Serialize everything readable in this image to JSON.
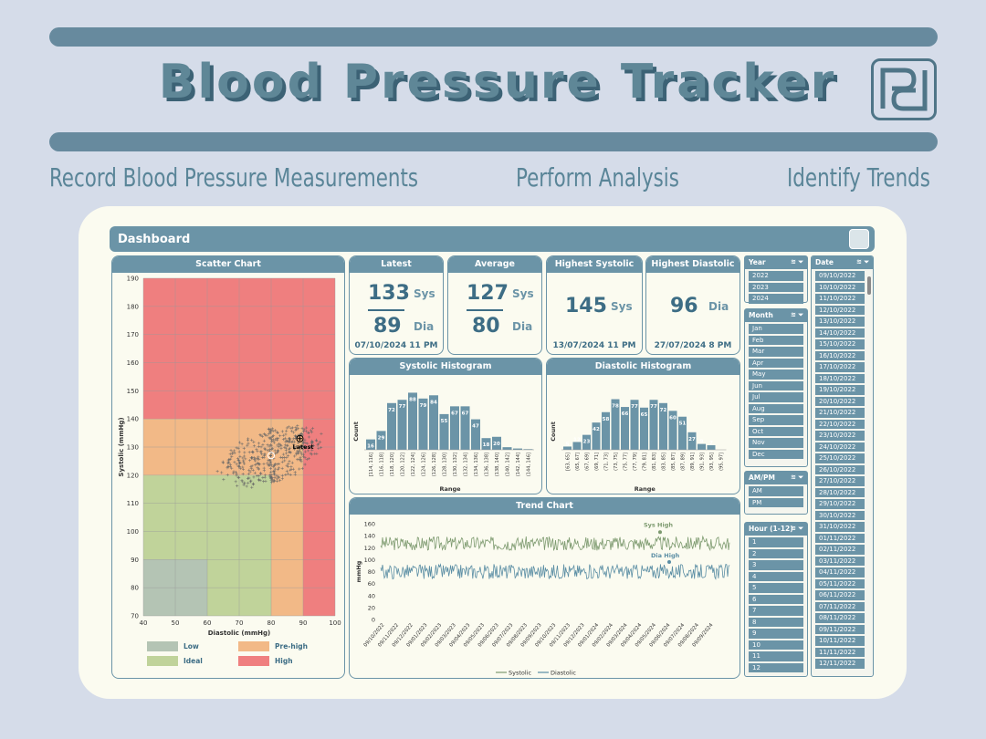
{
  "hero": {
    "title": "Blood Pressure Tracker",
    "tagline_1": "Record Blood Pressure Measurements",
    "tagline_2": "Perform Analysis",
    "tagline_3": "Identify Trends"
  },
  "dashboard": {
    "title": "Dashboard",
    "latest": {
      "label": "Latest",
      "sys": "133",
      "dia": "89",
      "sys_unit": "Sys",
      "dia_unit": "Dia",
      "date": "07/10/2024 11 PM"
    },
    "average": {
      "label": "Average",
      "sys": "127",
      "dia": "80",
      "sys_unit": "Sys",
      "dia_unit": "Dia"
    },
    "highest_systolic": {
      "label": "Highest Systolic",
      "value": "145",
      "unit": "Sys",
      "date": "13/07/2024 11 PM"
    },
    "highest_diastolic": {
      "label": "Highest Diastolic",
      "value": "96",
      "unit": "Dia",
      "date": "27/07/2024 8 PM"
    }
  },
  "colors": {
    "low": "#b4c4b4",
    "ideal": "#c0d39a",
    "prehigh": "#f2b987",
    "high": "#ef7f7f",
    "accent": "#6b94a7",
    "systolic": "#7d9a6f",
    "diastolic": "#5b8ea4"
  },
  "chart_data": [
    {
      "type": "scatter",
      "title": "Scatter Chart",
      "xlabel": "Diastolic (mmHg)",
      "ylabel": "Systolic (mmHg)",
      "xlim": [
        40,
        100
      ],
      "ylim": [
        70,
        190
      ],
      "x_ticks": [
        "40",
        "50",
        "60",
        "70",
        "80",
        "90",
        "100"
      ],
      "y_ticks": [
        "70",
        "80",
        "90",
        "100",
        "110",
        "120",
        "130",
        "140",
        "150",
        "160",
        "170",
        "180",
        "190"
      ],
      "zones": [
        {
          "name": "Low",
          "color": "#b4c4b4"
        },
        {
          "name": "Ideal",
          "color": "#c0d39a"
        },
        {
          "name": "Pre-high",
          "color": "#f2b987"
        },
        {
          "name": "High",
          "color": "#ef7f7f"
        }
      ],
      "latest_point": {
        "x": 89,
        "y": 133,
        "label": "Latest"
      },
      "average_point": {
        "x": 80,
        "y": 127
      },
      "cluster": {
        "x_range": [
          63,
          97
        ],
        "y_range": [
          118,
          144
        ]
      }
    },
    {
      "type": "bar",
      "title": "Systolic Histogram",
      "xlabel": "Range",
      "ylabel": "Count",
      "categories": [
        "[114, 116]",
        "(116, 118]",
        "(118, 120]",
        "(120, 122]",
        "(122, 124]",
        "(124, 126]",
        "(126, 128]",
        "(128, 130]",
        "(130, 132]",
        "(132, 134]",
        "(134, 136]",
        "(136, 138]",
        "(138, 140]",
        "(140, 142]",
        "(142, 144]",
        "(144, 146]"
      ],
      "values": [
        16,
        29,
        72,
        77,
        88,
        79,
        84,
        55,
        67,
        67,
        47,
        18,
        20,
        4,
        2,
        1
      ],
      "label_values": [
        "16",
        "29",
        "72",
        "77",
        "88",
        "79",
        "84",
        "55",
        "67",
        "67",
        "47",
        "18",
        "20"
      ]
    },
    {
      "type": "bar",
      "title": "Diastolic Histogram",
      "xlabel": "Range",
      "ylabel": "Count",
      "categories": [
        "[63, 65]",
        "(65, 67]",
        "(67, 69]",
        "(69, 71]",
        "(71, 73]",
        "(73, 75]",
        "(75, 77]",
        "(77, 79]",
        "(79, 81]",
        "(81, 83]",
        "(83, 85]",
        "(85, 87]",
        "(87, 89]",
        "(89, 91]",
        "(91, 93]",
        "(93, 95]",
        "(95, 97]"
      ],
      "values": [
        5,
        12,
        23,
        42,
        58,
        78,
        66,
        77,
        65,
        77,
        72,
        60,
        51,
        27,
        9,
        7,
        0
      ],
      "label_values": [
        "5",
        "12",
        "23",
        "42",
        "58",
        "78",
        "66",
        "77",
        "65",
        "77",
        "72",
        "60",
        "51",
        "27",
        "9",
        "7"
      ]
    },
    {
      "type": "line",
      "title": "Trend Chart",
      "ylabel": "mmHg",
      "ylim": [
        0,
        160
      ],
      "y_ticks": [
        "0",
        "20",
        "40",
        "60",
        "80",
        "100",
        "120",
        "140",
        "160"
      ],
      "x_ticks": [
        "09/10/2022",
        "09/11/2022",
        "09/12/2022",
        "09/01/2023",
        "09/02/2023",
        "09/03/2023",
        "09/04/2023",
        "09/05/2023",
        "09/06/2023",
        "09/07/2023",
        "09/08/2023",
        "09/09/2023",
        "09/10/2023",
        "09/11/2023",
        "09/12/2023",
        "09/01/2024",
        "09/02/2024",
        "09/03/2024",
        "09/04/2024",
        "09/05/2024",
        "09/06/2024",
        "09/07/2024",
        "09/08/2024",
        "09/09/2024"
      ],
      "series": [
        {
          "name": "Systolic",
          "mean": 127,
          "min": 114,
          "max": 145
        },
        {
          "name": "Diastolic",
          "mean": 80,
          "min": 63,
          "max": 96
        }
      ],
      "annotations": [
        "Sys High",
        "Dia High"
      ]
    }
  ],
  "slicers": {
    "year": {
      "title": "Year",
      "items": [
        "2022",
        "2023",
        "2024"
      ]
    },
    "month": {
      "title": "Month",
      "items": [
        "Jan",
        "Feb",
        "Mar",
        "Apr",
        "May",
        "Jun",
        "Jul",
        "Aug",
        "Sep",
        "Oct",
        "Nov",
        "Dec"
      ]
    },
    "ampm": {
      "title": "AM/PM",
      "items": [
        "AM",
        "PM"
      ]
    },
    "hour": {
      "title": "Hour (1-12)",
      "items": [
        "1",
        "2",
        "3",
        "4",
        "5",
        "6",
        "7",
        "8",
        "9",
        "10",
        "11",
        "12"
      ]
    },
    "date": {
      "title": "Date",
      "items": [
        "09/10/2022",
        "10/10/2022",
        "11/10/2022",
        "12/10/2022",
        "13/10/2022",
        "14/10/2022",
        "15/10/2022",
        "16/10/2022",
        "17/10/2022",
        "18/10/2022",
        "19/10/2022",
        "20/10/2022",
        "21/10/2022",
        "22/10/2022",
        "23/10/2022",
        "24/10/2022",
        "25/10/2022",
        "26/10/2022",
        "27/10/2022",
        "28/10/2022",
        "29/10/2022",
        "30/10/2022",
        "31/10/2022",
        "01/11/2022",
        "02/11/2022",
        "03/11/2022",
        "04/11/2022",
        "05/11/2022",
        "06/11/2022",
        "07/11/2022",
        "08/11/2022",
        "09/11/2022",
        "10/11/2022",
        "11/11/2022",
        "12/11/2022"
      ]
    }
  }
}
